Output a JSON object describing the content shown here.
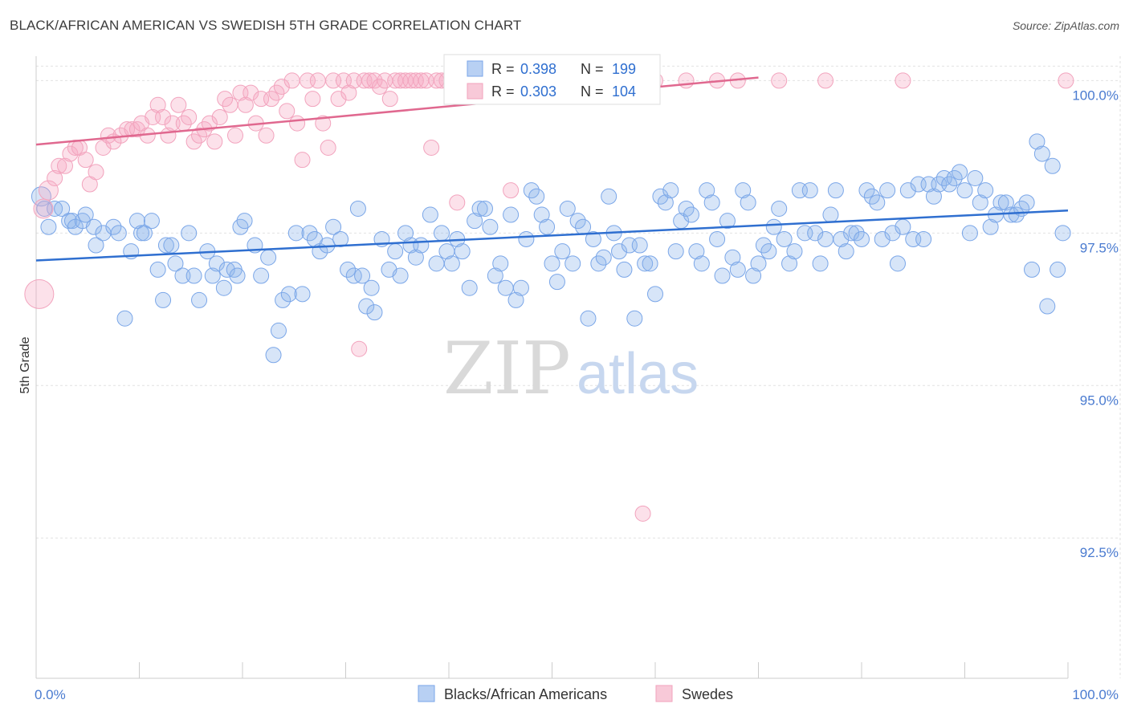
{
  "title": "BLACK/AFRICAN AMERICAN VS SWEDISH 5TH GRADE CORRELATION CHART",
  "source": "Source: ZipAtlas.com",
  "watermark": {
    "zip": "ZIP",
    "atlas": "atlas"
  },
  "colors": {
    "blue": "#7aa6e8",
    "blue_line": "#2f6fd0",
    "pink": "#f2a3bd",
    "pink_line": "#e0688f"
  },
  "legend": {
    "rows": [
      {
        "r_label": "R = ",
        "r_value": "0.398",
        "n_label": "N = ",
        "n_value": "199"
      },
      {
        "r_label": "R = ",
        "r_value": "0.303",
        "n_label": "N = ",
        "n_value": "104"
      }
    ]
  },
  "bottom_legend": [
    "Blacks/African Americans",
    "Swedes"
  ],
  "chart_data": {
    "type": "scatter",
    "title": "BLACK/AFRICAN AMERICAN VS SWEDISH 5TH GRADE CORRELATION CHART",
    "xlabel": "",
    "ylabel": "5th Grade",
    "xlim": [
      0,
      100
    ],
    "ylim": [
      90.2,
      100.4
    ],
    "x_ticks": [
      "0.0%",
      "100.0%"
    ],
    "y_ticks": [
      {
        "value": 100.0,
        "label": "100.0%"
      },
      {
        "value": 97.5,
        "label": "97.5%"
      },
      {
        "value": 95.0,
        "label": "95.0%"
      },
      {
        "value": 92.5,
        "label": "92.5%"
      }
    ],
    "grid": true,
    "legend_position": "top-center",
    "series": [
      {
        "name": "Blacks/African Americans",
        "r": 0.398,
        "n": 199,
        "trend": {
          "x": [
            0,
            100
          ],
          "y": [
            97.05,
            97.87
          ]
        },
        "points": [
          [
            0.5,
            98.1
          ],
          [
            0.8,
            97.9
          ],
          [
            1.2,
            97.6
          ],
          [
            1.8,
            97.9
          ],
          [
            2.5,
            97.9
          ],
          [
            3.2,
            97.7
          ],
          [
            3.5,
            97.7
          ],
          [
            3.8,
            97.6
          ],
          [
            4.5,
            97.7
          ],
          [
            4.8,
            97.8
          ],
          [
            5.6,
            97.6
          ],
          [
            5.8,
            97.3
          ],
          [
            6.5,
            97.5
          ],
          [
            7.5,
            97.6
          ],
          [
            8.0,
            97.5
          ],
          [
            8.6,
            96.1
          ],
          [
            9.2,
            97.2
          ],
          [
            9.8,
            97.7
          ],
          [
            10.2,
            97.5
          ],
          [
            10.5,
            97.5
          ],
          [
            11.2,
            97.7
          ],
          [
            11.8,
            96.9
          ],
          [
            12.3,
            96.4
          ],
          [
            12.6,
            97.3
          ],
          [
            13.1,
            97.3
          ],
          [
            13.5,
            97.0
          ],
          [
            14.2,
            96.8
          ],
          [
            14.8,
            97.5
          ],
          [
            15.3,
            96.8
          ],
          [
            15.8,
            96.4
          ],
          [
            16.6,
            97.2
          ],
          [
            17.1,
            96.8
          ],
          [
            17.5,
            97.0
          ],
          [
            18.2,
            96.6
          ],
          [
            18.5,
            96.9
          ],
          [
            19.2,
            96.9
          ],
          [
            19.5,
            96.8
          ],
          [
            19.8,
            97.6
          ],
          [
            20.2,
            97.7
          ],
          [
            21.2,
            97.3
          ],
          [
            21.8,
            96.8
          ],
          [
            22.5,
            97.1
          ],
          [
            23.0,
            95.5
          ],
          [
            23.5,
            95.9
          ],
          [
            23.9,
            96.4
          ],
          [
            24.5,
            96.5
          ],
          [
            25.2,
            97.5
          ],
          [
            25.8,
            96.5
          ],
          [
            26.5,
            97.5
          ],
          [
            27.0,
            97.4
          ],
          [
            27.5,
            97.2
          ],
          [
            28.2,
            97.3
          ],
          [
            28.8,
            97.6
          ],
          [
            29.5,
            97.4
          ],
          [
            30.2,
            96.9
          ],
          [
            30.8,
            96.8
          ],
          [
            31.2,
            97.9
          ],
          [
            31.6,
            96.8
          ],
          [
            32.0,
            96.3
          ],
          [
            32.5,
            96.6
          ],
          [
            32.8,
            96.2
          ],
          [
            33.5,
            97.4
          ],
          [
            34.2,
            96.9
          ],
          [
            34.8,
            97.2
          ],
          [
            35.3,
            96.8
          ],
          [
            35.8,
            97.5
          ],
          [
            36.3,
            97.3
          ],
          [
            36.8,
            97.1
          ],
          [
            37.3,
            97.3
          ],
          [
            38.2,
            97.8
          ],
          [
            38.8,
            97.0
          ],
          [
            39.3,
            97.5
          ],
          [
            39.8,
            97.2
          ],
          [
            40.3,
            97.0
          ],
          [
            40.8,
            97.4
          ],
          [
            41.3,
            97.2
          ],
          [
            42.0,
            96.6
          ],
          [
            42.5,
            97.7
          ],
          [
            43.0,
            97.9
          ],
          [
            43.5,
            97.9
          ],
          [
            44.0,
            97.6
          ],
          [
            44.5,
            96.8
          ],
          [
            45.0,
            97.0
          ],
          [
            45.5,
            96.6
          ],
          [
            46.0,
            97.8
          ],
          [
            46.5,
            96.4
          ],
          [
            47.0,
            96.6
          ],
          [
            47.5,
            97.4
          ],
          [
            48.0,
            98.2
          ],
          [
            48.5,
            98.1
          ],
          [
            49.0,
            97.8
          ],
          [
            49.5,
            97.6
          ],
          [
            50.0,
            97.0
          ],
          [
            50.5,
            96.7
          ],
          [
            51.0,
            97.2
          ],
          [
            51.5,
            97.9
          ],
          [
            52.0,
            97.0
          ],
          [
            52.5,
            97.7
          ],
          [
            53.0,
            97.6
          ],
          [
            53.5,
            96.1
          ],
          [
            54.0,
            97.4
          ],
          [
            54.5,
            97.0
          ],
          [
            55.0,
            97.1
          ],
          [
            55.5,
            98.1
          ],
          [
            56.0,
            97.5
          ],
          [
            56.5,
            97.2
          ],
          [
            57.0,
            96.9
          ],
          [
            57.5,
            97.3
          ],
          [
            58.0,
            96.1
          ],
          [
            58.5,
            97.3
          ],
          [
            59.0,
            97.0
          ],
          [
            59.5,
            97.0
          ],
          [
            60.0,
            96.5
          ],
          [
            60.5,
            98.1
          ],
          [
            61.0,
            98.0
          ],
          [
            61.5,
            98.2
          ],
          [
            62.0,
            97.2
          ],
          [
            62.5,
            97.7
          ],
          [
            63.0,
            97.9
          ],
          [
            63.5,
            97.8
          ],
          [
            64.0,
            97.2
          ],
          [
            64.5,
            97.0
          ],
          [
            65.0,
            98.2
          ],
          [
            65.5,
            98.0
          ],
          [
            66.0,
            97.4
          ],
          [
            66.5,
            96.8
          ],
          [
            67.0,
            97.7
          ],
          [
            67.5,
            97.1
          ],
          [
            68.0,
            96.9
          ],
          [
            68.5,
            98.2
          ],
          [
            69.0,
            98.0
          ],
          [
            69.5,
            96.8
          ],
          [
            70.0,
            97.0
          ],
          [
            70.5,
            97.3
          ],
          [
            71.0,
            97.2
          ],
          [
            71.5,
            97.6
          ],
          [
            72.0,
            97.9
          ],
          [
            72.5,
            97.4
          ],
          [
            73.0,
            97.0
          ],
          [
            73.5,
            97.2
          ],
          [
            74.0,
            98.2
          ],
          [
            74.5,
            97.5
          ],
          [
            75.0,
            98.2
          ],
          [
            75.5,
            97.5
          ],
          [
            76.0,
            97.0
          ],
          [
            76.5,
            97.4
          ],
          [
            77.0,
            97.8
          ],
          [
            77.5,
            98.2
          ],
          [
            78.0,
            97.4
          ],
          [
            78.5,
            97.2
          ],
          [
            79.0,
            97.5
          ],
          [
            79.5,
            97.5
          ],
          [
            80.0,
            97.4
          ],
          [
            80.5,
            98.2
          ],
          [
            81.0,
            98.1
          ],
          [
            81.5,
            98.0
          ],
          [
            82.0,
            97.4
          ],
          [
            82.5,
            98.2
          ],
          [
            83.0,
            97.5
          ],
          [
            83.5,
            97.0
          ],
          [
            84.0,
            97.6
          ],
          [
            84.5,
            98.2
          ],
          [
            85.0,
            97.4
          ],
          [
            85.5,
            98.3
          ],
          [
            86.0,
            97.4
          ],
          [
            86.5,
            98.3
          ],
          [
            87.0,
            98.1
          ],
          [
            87.5,
            98.3
          ],
          [
            88.0,
            98.4
          ],
          [
            88.5,
            98.3
          ],
          [
            89.0,
            98.4
          ],
          [
            89.5,
            98.5
          ],
          [
            90.0,
            98.2
          ],
          [
            90.5,
            97.5
          ],
          [
            91.0,
            98.4
          ],
          [
            91.5,
            98.0
          ],
          [
            92.0,
            98.2
          ],
          [
            92.5,
            97.6
          ],
          [
            93.0,
            97.8
          ],
          [
            93.5,
            98.0
          ],
          [
            94.0,
            98.0
          ],
          [
            94.5,
            97.8
          ],
          [
            95.0,
            97.8
          ],
          [
            95.5,
            97.9
          ],
          [
            96.0,
            98.0
          ],
          [
            96.5,
            96.9
          ],
          [
            97.0,
            99.0
          ],
          [
            97.5,
            98.8
          ],
          [
            98.0,
            96.3
          ],
          [
            98.5,
            98.6
          ],
          [
            99.0,
            96.9
          ],
          [
            99.5,
            97.5
          ]
        ],
        "sizes_note": ""
      },
      {
        "name": "Swedes",
        "r": 0.303,
        "n": 104,
        "trend": {
          "x": [
            0,
            70
          ],
          "y": [
            98.95,
            100.05
          ]
        },
        "points": [
          [
            0.3,
            96.5
          ],
          [
            0.7,
            97.9
          ],
          [
            1.2,
            98.2
          ],
          [
            1.8,
            98.4
          ],
          [
            2.2,
            98.6
          ],
          [
            2.8,
            98.6
          ],
          [
            3.3,
            98.8
          ],
          [
            3.8,
            98.9
          ],
          [
            4.2,
            98.9
          ],
          [
            4.8,
            98.7
          ],
          [
            5.2,
            98.3
          ],
          [
            5.8,
            98.5
          ],
          [
            6.5,
            98.9
          ],
          [
            7.0,
            99.1
          ],
          [
            7.5,
            99.0
          ],
          [
            8.2,
            99.1
          ],
          [
            8.8,
            99.2
          ],
          [
            9.3,
            99.2
          ],
          [
            9.8,
            99.2
          ],
          [
            10.2,
            99.3
          ],
          [
            10.8,
            99.1
          ],
          [
            11.3,
            99.4
          ],
          [
            11.8,
            99.6
          ],
          [
            12.3,
            99.4
          ],
          [
            12.8,
            99.1
          ],
          [
            13.2,
            99.3
          ],
          [
            13.8,
            99.6
          ],
          [
            14.3,
            99.3
          ],
          [
            14.8,
            99.4
          ],
          [
            15.3,
            99.0
          ],
          [
            15.8,
            99.1
          ],
          [
            16.3,
            99.2
          ],
          [
            16.8,
            99.3
          ],
          [
            17.3,
            99.0
          ],
          [
            17.8,
            99.4
          ],
          [
            18.3,
            99.7
          ],
          [
            18.8,
            99.6
          ],
          [
            19.3,
            99.1
          ],
          [
            19.8,
            99.8
          ],
          [
            20.3,
            99.6
          ],
          [
            20.8,
            99.8
          ],
          [
            21.3,
            99.3
          ],
          [
            21.8,
            99.7
          ],
          [
            22.3,
            99.1
          ],
          [
            22.8,
            99.7
          ],
          [
            23.3,
            99.8
          ],
          [
            23.8,
            99.9
          ],
          [
            24.3,
            99.5
          ],
          [
            24.8,
            100.0
          ],
          [
            25.3,
            99.3
          ],
          [
            25.8,
            98.7
          ],
          [
            26.3,
            100.0
          ],
          [
            26.8,
            99.7
          ],
          [
            27.3,
            100.0
          ],
          [
            27.8,
            99.3
          ],
          [
            28.3,
            98.9
          ],
          [
            28.8,
            100.0
          ],
          [
            29.3,
            99.7
          ],
          [
            29.8,
            100.0
          ],
          [
            30.3,
            99.8
          ],
          [
            30.8,
            100.0
          ],
          [
            31.3,
            95.6
          ],
          [
            31.8,
            100.0
          ],
          [
            32.3,
            100.0
          ],
          [
            32.8,
            100.0
          ],
          [
            33.3,
            99.9
          ],
          [
            33.8,
            100.0
          ],
          [
            34.3,
            99.7
          ],
          [
            34.8,
            100.0
          ],
          [
            35.3,
            100.0
          ],
          [
            35.8,
            100.0
          ],
          [
            36.3,
            100.0
          ],
          [
            36.8,
            100.0
          ],
          [
            37.3,
            100.0
          ],
          [
            37.8,
            100.0
          ],
          [
            38.3,
            98.9
          ],
          [
            38.8,
            100.0
          ],
          [
            39.3,
            100.0
          ],
          [
            39.8,
            100.0
          ],
          [
            40.3,
            100.0
          ],
          [
            40.8,
            98.0
          ],
          [
            41.3,
            100.0
          ],
          [
            42.0,
            100.0
          ],
          [
            43.0,
            100.0
          ],
          [
            44.0,
            100.0
          ],
          [
            45.0,
            100.0
          ],
          [
            46.0,
            98.2
          ],
          [
            47.0,
            100.0
          ],
          [
            48.0,
            100.0
          ],
          [
            49.0,
            100.0
          ],
          [
            50.0,
            100.0
          ],
          [
            52.0,
            100.0
          ],
          [
            54.0,
            100.0
          ],
          [
            56.0,
            100.0
          ],
          [
            58.0,
            100.0
          ],
          [
            58.8,
            92.9
          ],
          [
            60.0,
            100.0
          ],
          [
            63.0,
            100.0
          ],
          [
            66.0,
            100.0
          ],
          [
            68.0,
            100.0
          ],
          [
            72.0,
            100.0
          ],
          [
            76.5,
            100.0
          ],
          [
            84.0,
            100.0
          ],
          [
            99.8,
            100.0
          ]
        ]
      }
    ]
  }
}
